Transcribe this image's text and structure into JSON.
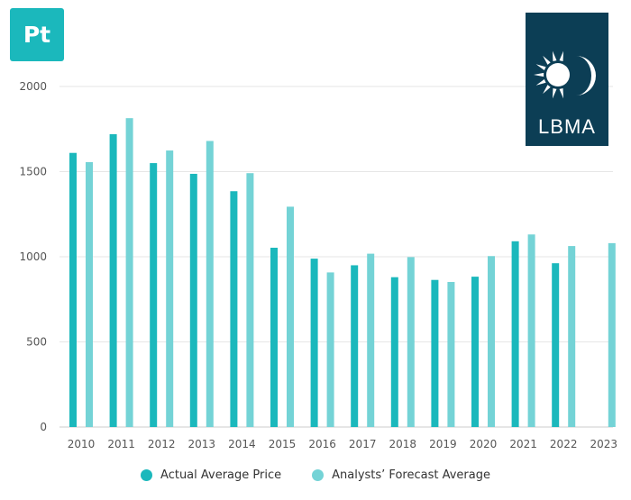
{
  "badge": {
    "text": "Pt"
  },
  "logo": {
    "text": "LBMA",
    "icon": "sun-moon-icon"
  },
  "colors": {
    "actual": "#1bb8bc",
    "forecast": "#74d3d6",
    "grid": "#e6e6e6",
    "logo_bg": "#0c3e55",
    "badge_bg": "#1bb8bc"
  },
  "legend": {
    "actual_label": "Actual Average Price",
    "forecast_label": "Analysts’ Forecast Average"
  },
  "chart_data": {
    "type": "bar",
    "title": "",
    "xlabel": "",
    "ylabel": "",
    "ylim": [
      0,
      2000
    ],
    "yticks": [
      0,
      500,
      1000,
      1500,
      2000
    ],
    "grid": true,
    "legend_position": "bottom",
    "categories": [
      "2010",
      "2011",
      "2012",
      "2013",
      "2014",
      "2015",
      "2016",
      "2017",
      "2018",
      "2019",
      "2020",
      "2021",
      "2022",
      "2023"
    ],
    "series": [
      {
        "name": "Actual Average Price",
        "values": [
          1610,
          1720,
          1550,
          1487,
          1385,
          1053,
          989,
          950,
          880,
          864,
          883,
          1091,
          962,
          null
        ]
      },
      {
        "name": "Analysts’ Forecast Average",
        "values": [
          1556,
          1814,
          1624,
          1680,
          1491,
          1294,
          908,
          1018,
          998,
          852,
          1004,
          1131,
          1063,
          1080
        ]
      }
    ]
  }
}
